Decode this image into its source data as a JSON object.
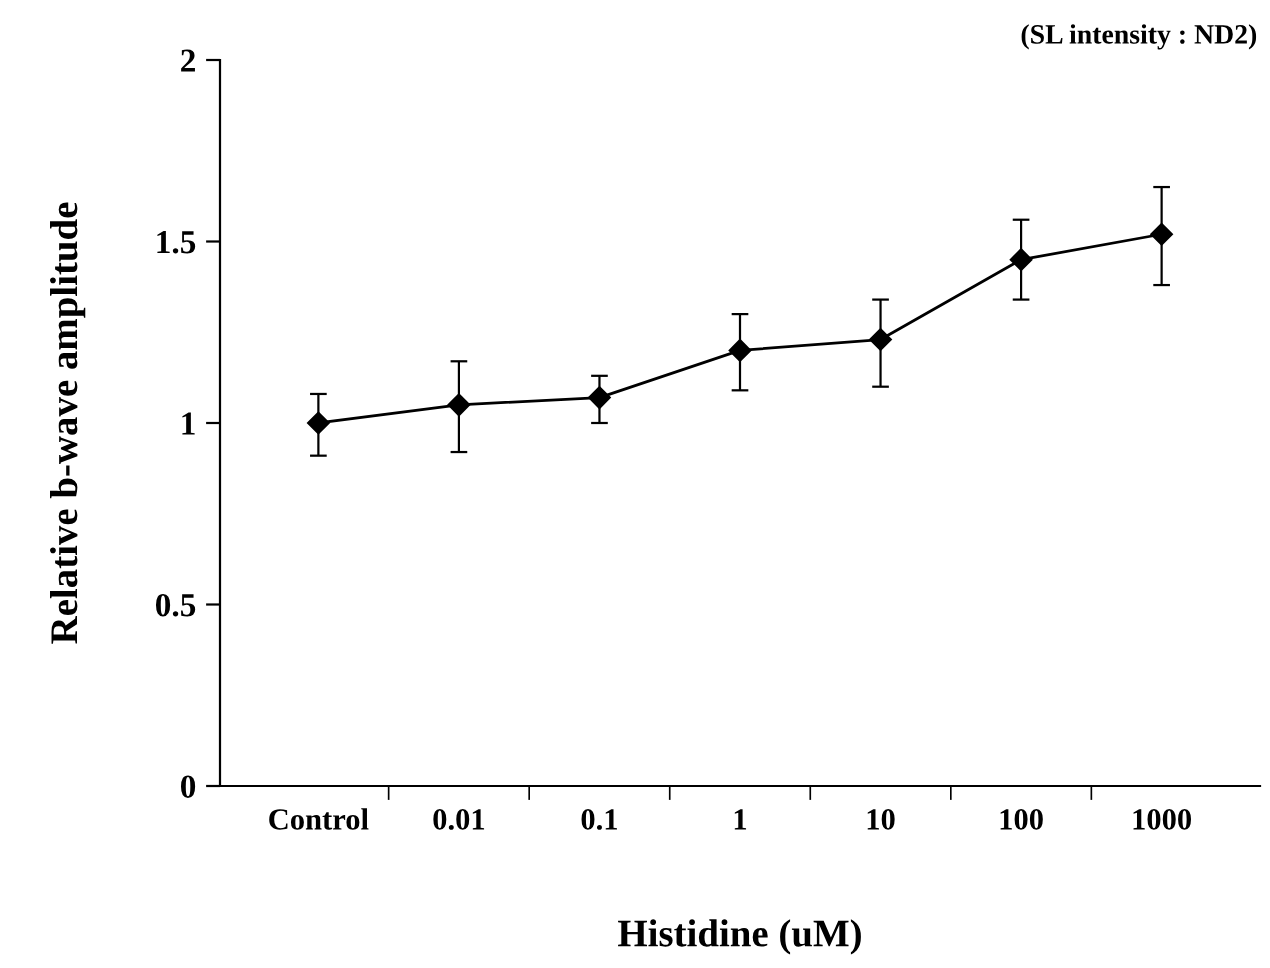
{
  "chart_data": {
    "type": "line",
    "xlabel": "Histidine (uM)",
    "ylabel": "Relative b-wave amplitude",
    "annotations": [
      "(SL intensity : ND2)"
    ],
    "categories": [
      "Control",
      "0.01",
      "0.1",
      "1",
      "10",
      "100",
      "1000"
    ],
    "series": [
      {
        "color": "#000000",
        "values": [
          1.0,
          1.05,
          1.07,
          1.2,
          1.23,
          1.45,
          1.52
        ],
        "errors": [
          [
            0.91,
            1.08
          ],
          [
            0.92,
            1.17
          ],
          [
            1.0,
            1.13
          ],
          [
            1.09,
            1.3
          ],
          [
            1.1,
            1.34
          ],
          [
            1.34,
            1.56
          ],
          [
            1.38,
            1.65
          ]
        ]
      }
    ],
    "ylim": [
      0,
      2
    ],
    "yticks": [
      0,
      0.5,
      1,
      1.5,
      2
    ],
    "grid": false,
    "legend": false,
    "marker": "diamond",
    "line_style": "solid"
  }
}
